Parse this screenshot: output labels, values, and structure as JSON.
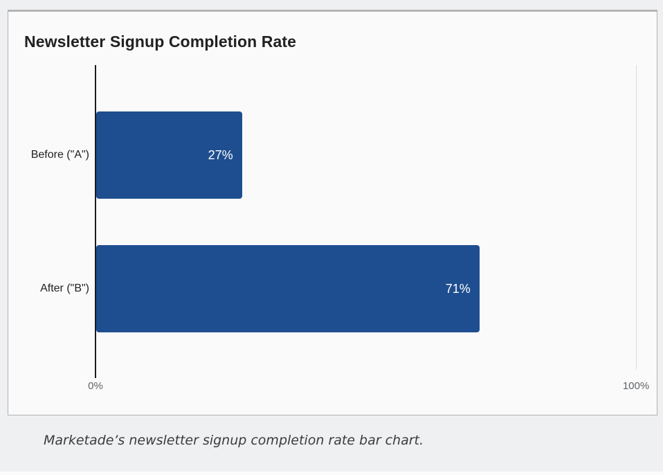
{
  "chart_data": {
    "type": "bar",
    "orientation": "horizontal",
    "title": "Newsletter Signup Completion Rate",
    "categories": [
      "Before (\"A\")",
      "After (\"B\")"
    ],
    "values": [
      27,
      71
    ],
    "value_labels": [
      "27%",
      "71%"
    ],
    "xlabel": "",
    "ylabel": "",
    "xlim": [
      0,
      100
    ],
    "x_tick_labels": [
      "0%",
      "100%"
    ],
    "legend": "none",
    "grid": "single vertical gridline at 100%",
    "bar_color": "#1e4e8f",
    "value_label_color": "#ffffff",
    "axis_line_color": "#1b1b1b",
    "tick_label_color": "#5f6368"
  },
  "page": {
    "background_color": "#eff0f2",
    "card_background_color": "#fafafa",
    "card_border_color": "#b1b1b3"
  },
  "caption": {
    "text": "Marketade’s newsletter signup completion rate bar chart."
  }
}
